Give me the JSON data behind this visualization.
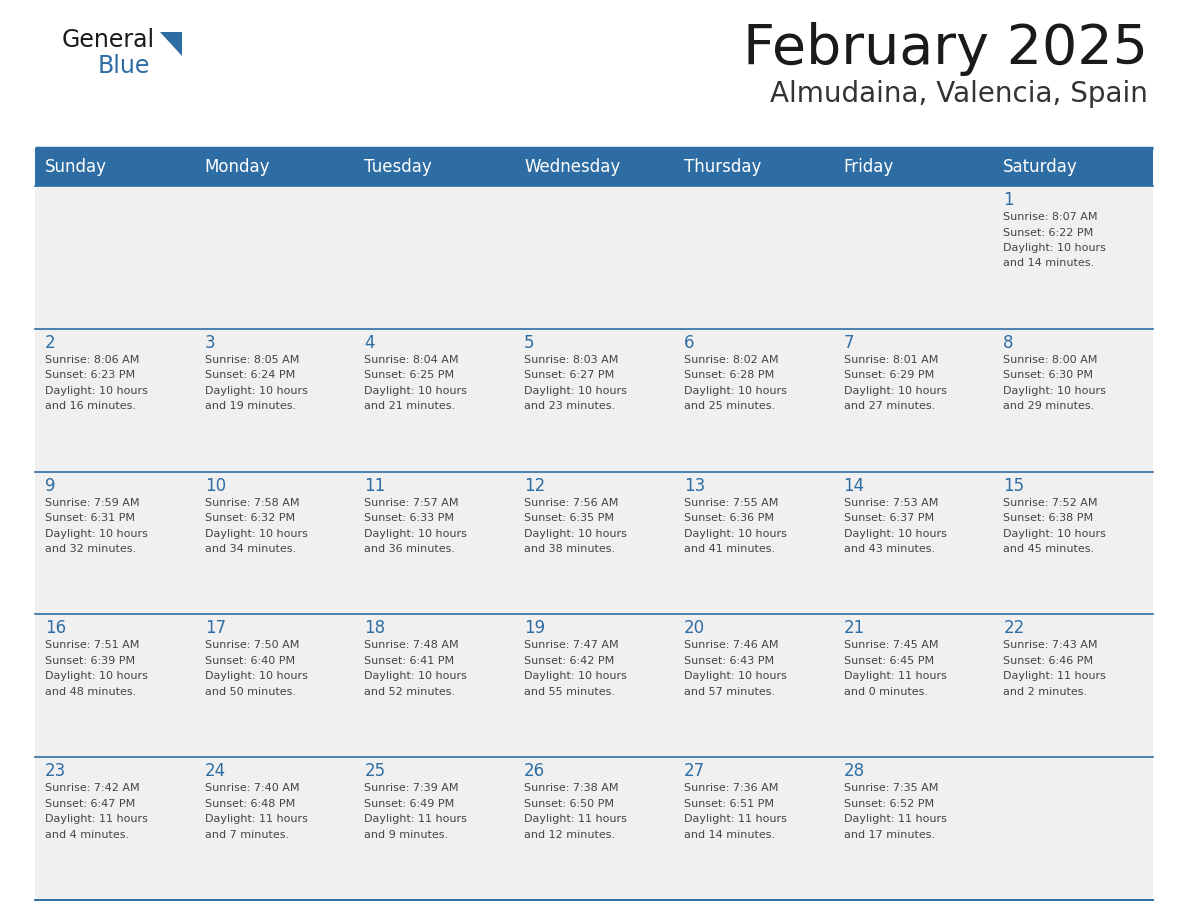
{
  "title": "February 2025",
  "subtitle": "Almudaina, Valencia, Spain",
  "header_bg": "#2E6DA4",
  "header_text_color": "#FFFFFF",
  "cell_bg": "#F0F0F0",
  "day_number_color": "#2E6DA4",
  "cell_text_color": "#444444",
  "border_color": "#2E6DA4",
  "days_of_week": [
    "Sunday",
    "Monday",
    "Tuesday",
    "Wednesday",
    "Thursday",
    "Friday",
    "Saturday"
  ],
  "title_color": "#1a1a1a",
  "subtitle_color": "#333333",
  "calendar": [
    [
      null,
      null,
      null,
      null,
      null,
      null,
      1
    ],
    [
      2,
      3,
      4,
      5,
      6,
      7,
      8
    ],
    [
      9,
      10,
      11,
      12,
      13,
      14,
      15
    ],
    [
      16,
      17,
      18,
      19,
      20,
      21,
      22
    ],
    [
      23,
      24,
      25,
      26,
      27,
      28,
      null
    ]
  ],
  "cell_data": {
    "1": {
      "sunrise": "8:07 AM",
      "sunset": "6:22 PM",
      "daylight_hours": 10,
      "daylight_minutes": 14
    },
    "2": {
      "sunrise": "8:06 AM",
      "sunset": "6:23 PM",
      "daylight_hours": 10,
      "daylight_minutes": 16
    },
    "3": {
      "sunrise": "8:05 AM",
      "sunset": "6:24 PM",
      "daylight_hours": 10,
      "daylight_minutes": 19
    },
    "4": {
      "sunrise": "8:04 AM",
      "sunset": "6:25 PM",
      "daylight_hours": 10,
      "daylight_minutes": 21
    },
    "5": {
      "sunrise": "8:03 AM",
      "sunset": "6:27 PM",
      "daylight_hours": 10,
      "daylight_minutes": 23
    },
    "6": {
      "sunrise": "8:02 AM",
      "sunset": "6:28 PM",
      "daylight_hours": 10,
      "daylight_minutes": 25
    },
    "7": {
      "sunrise": "8:01 AM",
      "sunset": "6:29 PM",
      "daylight_hours": 10,
      "daylight_minutes": 27
    },
    "8": {
      "sunrise": "8:00 AM",
      "sunset": "6:30 PM",
      "daylight_hours": 10,
      "daylight_minutes": 29
    },
    "9": {
      "sunrise": "7:59 AM",
      "sunset": "6:31 PM",
      "daylight_hours": 10,
      "daylight_minutes": 32
    },
    "10": {
      "sunrise": "7:58 AM",
      "sunset": "6:32 PM",
      "daylight_hours": 10,
      "daylight_minutes": 34
    },
    "11": {
      "sunrise": "7:57 AM",
      "sunset": "6:33 PM",
      "daylight_hours": 10,
      "daylight_minutes": 36
    },
    "12": {
      "sunrise": "7:56 AM",
      "sunset": "6:35 PM",
      "daylight_hours": 10,
      "daylight_minutes": 38
    },
    "13": {
      "sunrise": "7:55 AM",
      "sunset": "6:36 PM",
      "daylight_hours": 10,
      "daylight_minutes": 41
    },
    "14": {
      "sunrise": "7:53 AM",
      "sunset": "6:37 PM",
      "daylight_hours": 10,
      "daylight_minutes": 43
    },
    "15": {
      "sunrise": "7:52 AM",
      "sunset": "6:38 PM",
      "daylight_hours": 10,
      "daylight_minutes": 45
    },
    "16": {
      "sunrise": "7:51 AM",
      "sunset": "6:39 PM",
      "daylight_hours": 10,
      "daylight_minutes": 48
    },
    "17": {
      "sunrise": "7:50 AM",
      "sunset": "6:40 PM",
      "daylight_hours": 10,
      "daylight_minutes": 50
    },
    "18": {
      "sunrise": "7:48 AM",
      "sunset": "6:41 PM",
      "daylight_hours": 10,
      "daylight_minutes": 52
    },
    "19": {
      "sunrise": "7:47 AM",
      "sunset": "6:42 PM",
      "daylight_hours": 10,
      "daylight_minutes": 55
    },
    "20": {
      "sunrise": "7:46 AM",
      "sunset": "6:43 PM",
      "daylight_hours": 10,
      "daylight_minutes": 57
    },
    "21": {
      "sunrise": "7:45 AM",
      "sunset": "6:45 PM",
      "daylight_hours": 11,
      "daylight_minutes": 0
    },
    "22": {
      "sunrise": "7:43 AM",
      "sunset": "6:46 PM",
      "daylight_hours": 11,
      "daylight_minutes": 2
    },
    "23": {
      "sunrise": "7:42 AM",
      "sunset": "6:47 PM",
      "daylight_hours": 11,
      "daylight_minutes": 4
    },
    "24": {
      "sunrise": "7:40 AM",
      "sunset": "6:48 PM",
      "daylight_hours": 11,
      "daylight_minutes": 7
    },
    "25": {
      "sunrise": "7:39 AM",
      "sunset": "6:49 PM",
      "daylight_hours": 11,
      "daylight_minutes": 9
    },
    "26": {
      "sunrise": "7:38 AM",
      "sunset": "6:50 PM",
      "daylight_hours": 11,
      "daylight_minutes": 12
    },
    "27": {
      "sunrise": "7:36 AM",
      "sunset": "6:51 PM",
      "daylight_hours": 11,
      "daylight_minutes": 14
    },
    "28": {
      "sunrise": "7:35 AM",
      "sunset": "6:52 PM",
      "daylight_hours": 11,
      "daylight_minutes": 17
    }
  }
}
